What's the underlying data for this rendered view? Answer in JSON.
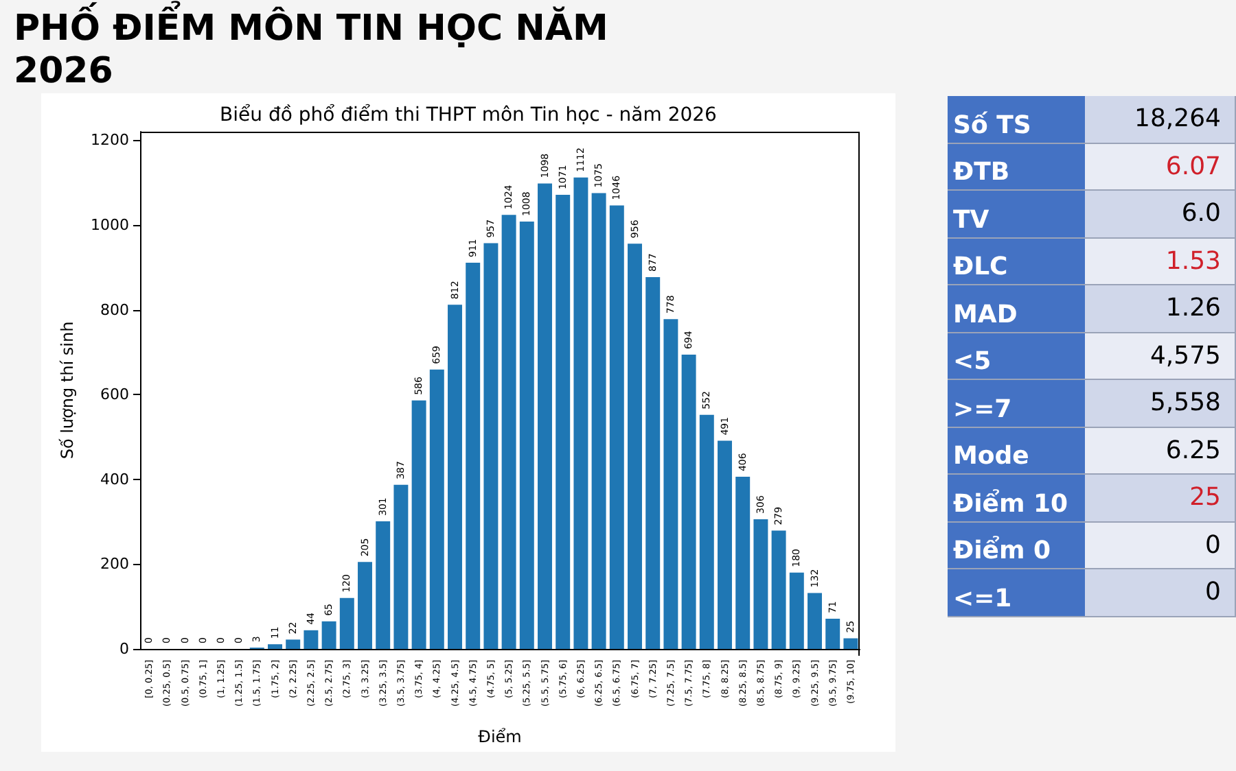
{
  "chart_data": [
    {
      "type": "other",
      "title": "PHỐ ĐIỂM MÔN TIN HỌC NĂM 2026"
    },
    {
      "type": "bar",
      "title": "Biểu đồ phổ điểm thi THPT môn Tin học - năm 2026",
      "xlabel": "Điểm",
      "ylabel": "Số lượng thí sinh",
      "categories": [
        "[0, 0.25]",
        "(0.25, 0.5]",
        "(0.5, 0.75]",
        "(0.75, 1]",
        "(1, 1.25]",
        "(1.25, 1.5]",
        "(1.5, 1.75]",
        "(1.75, 2]",
        "(2, 2.25]",
        "(2.25, 2.5]",
        "(2.5, 2.75]",
        "(2.75, 3]",
        "(3, 3.25]",
        "(3.25, 3.5]",
        "(3.5, 3.75]",
        "(3.75, 4]",
        "(4, 4.25]",
        "(4.25, 4.5]",
        "(4.5, 4.75]",
        "(4.75, 5]",
        "(5, 5.25]",
        "(5.25, 5.5]",
        "(5.5, 5.75]",
        "(5.75, 6]",
        "(6, 6.25]",
        "(6.25, 6.5]",
        "(6.5, 6.75]",
        "(6.75, 7]",
        "(7, 7.25]",
        "(7.25, 7.5]",
        "(7.5, 7.75]",
        "(7.75, 8]",
        "(8, 8.25]",
        "(8.25, 8.5]",
        "(8.5, 8.75]",
        "(8.75, 9]",
        "(9, 9.25]",
        "(9.25, 9.5]",
        "(9.5, 9.75]",
        "(9.75, 10]"
      ],
      "values": [
        0,
        0,
        0,
        0,
        0,
        0,
        3,
        11,
        22,
        44,
        65,
        120,
        205,
        301,
        387,
        586,
        659,
        812,
        911,
        957,
        1024,
        1008,
        1098,
        1071,
        1112,
        1075,
        1046,
        956,
        877,
        778,
        694,
        552,
        491,
        406,
        306,
        279,
        180,
        132,
        71,
        25
      ],
      "color": "#1f77b4",
      "ylim": [
        0,
        1220
      ],
      "yticks": [
        0,
        200,
        400,
        600,
        800,
        1000,
        1200
      ],
      "grid": false,
      "data_labels": true
    },
    {
      "type": "other",
      "annotations": [
        "Số TS",
        "18,264",
        "ĐTB",
        "6.07",
        "TV",
        "6.0",
        "ĐLC",
        "1.53",
        "MAD",
        "1.26",
        "<5",
        "4,575",
        ">=7",
        "5,558",
        "Mode",
        "6.25",
        "Điểm 10",
        "25",
        "Điểm 0",
        "0",
        "<=1",
        "0"
      ],
      "colors": [
        "#ffffff",
        "#000000",
        "#ffffff",
        "#d0202a",
        "#ffffff",
        "#000000",
        "#ffffff",
        "#d0202a",
        "#ffffff",
        "#000000",
        "#ffffff",
        "#000000",
        "#ffffff",
        "#000000",
        "#ffffff",
        "#000000",
        "#ffffff",
        "#d0202a",
        "#ffffff",
        "#000000",
        "#ffffff",
        "#000000"
      ]
    }
  ]
}
